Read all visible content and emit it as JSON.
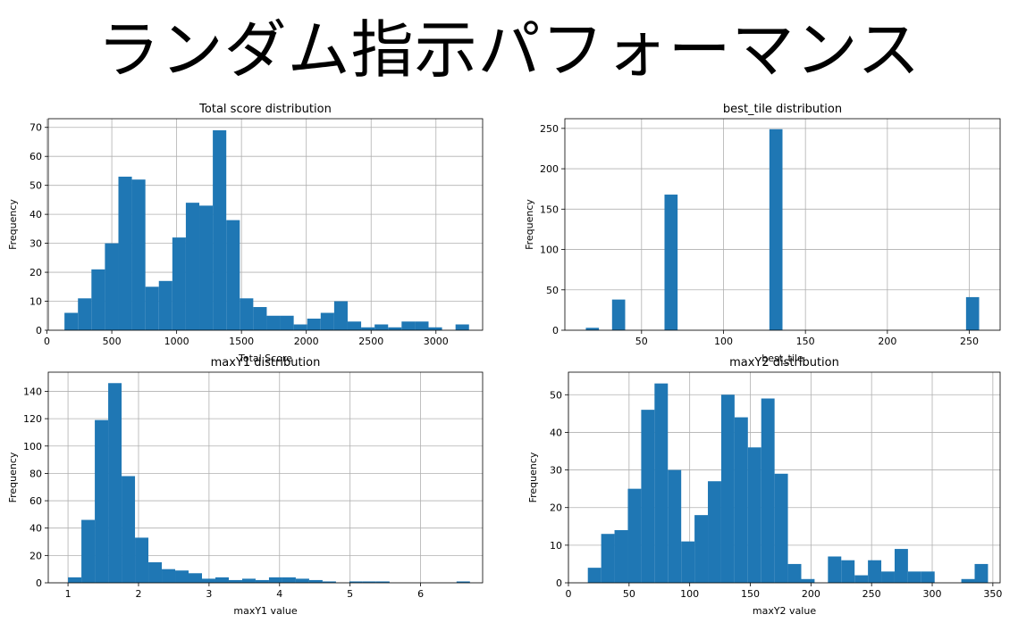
{
  "page_title": "ランダム指示パフォーマンス",
  "chart_data": [
    {
      "type": "histogram",
      "title": "Total score distribution",
      "xlabel": "Total Score",
      "ylabel": "Frequency",
      "xlim": [
        10,
        3360
      ],
      "ylim": [
        0,
        73
      ],
      "xticks": [
        0,
        500,
        1000,
        1500,
        2000,
        2500,
        3000
      ],
      "yticks": [
        0,
        10,
        20,
        30,
        40,
        50,
        60,
        70
      ],
      "grid": true,
      "bin_start": 135,
      "bin_width": 104,
      "values": [
        6,
        11,
        21,
        30,
        53,
        52,
        15,
        17,
        32,
        44,
        43,
        69,
        38,
        11,
        8,
        5,
        5,
        2,
        4,
        6,
        10,
        3,
        1,
        2,
        1,
        3,
        3,
        1,
        0,
        2
      ]
    },
    {
      "type": "histogram",
      "title": "best_tile distribution",
      "xlabel": "best_tile",
      "ylabel": "Frequency",
      "xlim": [
        3.2,
        268.8
      ],
      "ylim": [
        0,
        262
      ],
      "xticks": [
        50,
        100,
        150,
        200,
        250
      ],
      "yticks": [
        0,
        50,
        100,
        150,
        200,
        250
      ],
      "grid": true,
      "bin_start": 16,
      "bin_width": 8,
      "values": [
        3,
        0,
        38,
        0,
        0,
        0,
        168,
        0,
        0,
        0,
        0,
        0,
        0,
        0,
        249,
        0,
        0,
        0,
        0,
        0,
        0,
        0,
        0,
        0,
        0,
        0,
        0,
        0,
        0,
        41
      ]
    },
    {
      "type": "histogram",
      "title": "maxY1 distribution",
      "xlabel": "maxY1 value",
      "ylabel": "Frequency",
      "xlim": [
        0.72,
        6.88
      ],
      "ylim": [
        0,
        154
      ],
      "xticks": [
        1,
        2,
        3,
        4,
        5,
        6
      ],
      "yticks": [
        0,
        20,
        40,
        60,
        80,
        100,
        120,
        140
      ],
      "grid": true,
      "bin_start": 1.0,
      "bin_width": 0.19,
      "values": [
        4,
        46,
        119,
        146,
        78,
        33,
        15,
        10,
        9,
        7,
        3,
        4,
        2,
        3,
        2,
        4,
        4,
        3,
        2,
        1,
        0,
        1,
        1,
        1,
        0,
        0,
        0,
        0,
        0,
        1
      ]
    },
    {
      "type": "histogram",
      "title": "maxY2 distribution",
      "xlabel": "maxY2 value",
      "ylabel": "Frequency",
      "xlim": [
        0,
        356
      ],
      "ylim": [
        0,
        56
      ],
      "xticks": [
        0,
        50,
        100,
        150,
        200,
        250,
        300,
        350
      ],
      "yticks": [
        0,
        10,
        20,
        30,
        40,
        50
      ],
      "grid": true,
      "bin_start": 16,
      "bin_width": 11,
      "values": [
        4,
        13,
        14,
        25,
        46,
        53,
        30,
        11,
        18,
        27,
        50,
        44,
        36,
        49,
        29,
        5,
        1,
        0,
        7,
        6,
        2,
        6,
        3,
        9,
        3,
        3,
        0,
        0,
        1,
        5
      ]
    }
  ]
}
